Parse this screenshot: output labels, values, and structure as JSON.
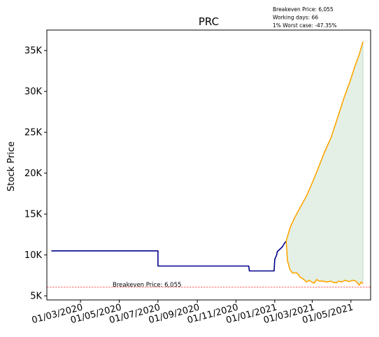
{
  "chart_data": {
    "type": "line",
    "title": "PRC",
    "xlabel": "",
    "ylabel": "Stock Price",
    "info_lines": [
      "Breakeven Price: 6,055",
      "Working days: 66",
      "1% Worst case: -47.35%"
    ],
    "breakeven": {
      "value": 6055,
      "label": "Breakeven Price: 6,055",
      "color": "#ff0000"
    },
    "xlim": [
      "2020-01-08",
      "2021-06-01"
    ],
    "ylim": [
      4500,
      37500
    ],
    "y_ticks": [
      {
        "value": 5000,
        "label": "5K"
      },
      {
        "value": 10000,
        "label": "10K"
      },
      {
        "value": 15000,
        "label": "15K"
      },
      {
        "value": 20000,
        "label": "20K"
      },
      {
        "value": 25000,
        "label": "25K"
      },
      {
        "value": 30000,
        "label": "30K"
      },
      {
        "value": 35000,
        "label": "35K"
      }
    ],
    "x_ticks": [
      {
        "date": "2020-03-01",
        "label": "01/03/2020"
      },
      {
        "date": "2020-05-01",
        "label": "01/05/2020"
      },
      {
        "date": "2020-07-01",
        "label": "01/07/2020"
      },
      {
        "date": "2020-09-01",
        "label": "01/09/2020"
      },
      {
        "date": "2020-11-01",
        "label": "01/11/2020"
      },
      {
        "date": "2021-01-01",
        "label": "01/01/2021"
      },
      {
        "date": "2021-03-01",
        "label": "01/03/2021"
      },
      {
        "date": "2021-05-01",
        "label": "01/05/2021"
      }
    ],
    "series": [
      {
        "color": "#00008b",
        "points": [
          [
            "2020-01-15",
            10500
          ],
          [
            "2020-07-01",
            10500
          ],
          [
            "2020-07-01",
            8650
          ],
          [
            "2020-11-21",
            8650
          ],
          [
            "2020-11-22",
            8050
          ],
          [
            "2020-12-31",
            8050
          ],
          [
            "2021-01-01",
            9450
          ],
          [
            "2021-01-04",
            10000
          ],
          [
            "2021-01-05",
            10400
          ],
          [
            "2021-01-09",
            10700
          ],
          [
            "2021-01-13",
            11000
          ],
          [
            "2021-01-17",
            11500
          ],
          [
            "2021-01-19",
            11700
          ]
        ]
      },
      {
        "color": "#ffa500",
        "points": [
          [
            "2021-01-19",
            11700
          ],
          [
            "2021-01-25",
            13300
          ],
          [
            "2021-02-01",
            14500
          ],
          [
            "2021-02-10",
            15800
          ],
          [
            "2021-02-20",
            17200
          ],
          [
            "2021-03-01",
            18800
          ],
          [
            "2021-03-10",
            20500
          ],
          [
            "2021-03-20",
            22500
          ],
          [
            "2021-03-31",
            24400
          ],
          [
            "2021-04-10",
            26800
          ],
          [
            "2021-04-20",
            29200
          ],
          [
            "2021-04-30",
            31300
          ],
          [
            "2021-05-07",
            33000
          ],
          [
            "2021-05-14",
            34500
          ],
          [
            "2021-05-20",
            36100
          ]
        ]
      },
      {
        "color": "#ffa500",
        "points": [
          [
            "2021-01-19",
            11700
          ],
          [
            "2021-01-21",
            9300
          ],
          [
            "2021-01-25",
            8200
          ],
          [
            "2021-01-29",
            7800
          ],
          [
            "2021-02-05",
            7800
          ],
          [
            "2021-02-10",
            7300
          ],
          [
            "2021-02-16",
            7000
          ],
          [
            "2021-02-20",
            6700
          ],
          [
            "2021-02-24",
            6900
          ],
          [
            "2021-02-28",
            6700
          ],
          [
            "2021-03-04",
            6550
          ],
          [
            "2021-03-08",
            7000
          ],
          [
            "2021-03-12",
            6800
          ],
          [
            "2021-03-18",
            6800
          ],
          [
            "2021-03-24",
            6700
          ],
          [
            "2021-03-30",
            6800
          ],
          [
            "2021-04-03",
            6650
          ],
          [
            "2021-04-08",
            6600
          ],
          [
            "2021-04-12",
            6800
          ],
          [
            "2021-04-16",
            6700
          ],
          [
            "2021-04-22",
            6900
          ],
          [
            "2021-04-28",
            6750
          ],
          [
            "2021-05-04",
            6900
          ],
          [
            "2021-05-09",
            6800
          ],
          [
            "2021-05-14",
            6300
          ],
          [
            "2021-05-17",
            6700
          ],
          [
            "2021-05-20",
            6500
          ]
        ]
      }
    ],
    "band": {
      "color": "#2e8b3a",
      "opacity": 0.13,
      "start": "2021-01-19",
      "end": "2021-05-20"
    },
    "grid": false,
    "legend": "none"
  }
}
